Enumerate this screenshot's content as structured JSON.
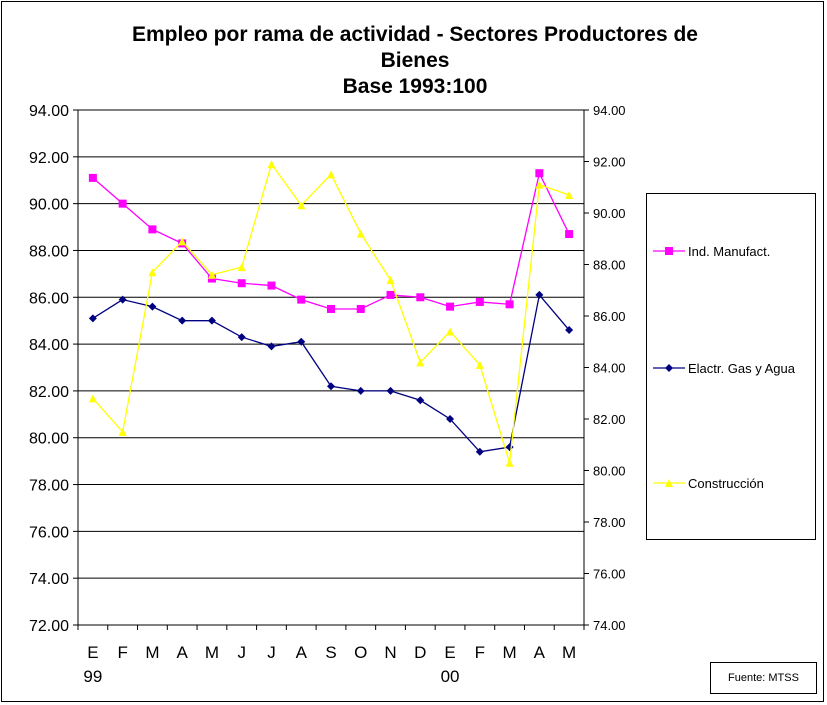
{
  "chart_data": {
    "type": "line",
    "title_lines": [
      "Empleo por rama de actividad - Sectores Productores de",
      "Bienes",
      "Base 1993:100"
    ],
    "categories": [
      "E",
      "F",
      "M",
      "A",
      "M",
      "J",
      "J",
      "A",
      "S",
      "O",
      "N",
      "D",
      "E",
      "F",
      "M",
      "A",
      "M"
    ],
    "year_labels": [
      {
        "index": 0,
        "label": "99"
      },
      {
        "index": 12,
        "label": "00"
      }
    ],
    "y_left": {
      "min": 72,
      "max": 94,
      "step": 2,
      "ticks": [
        "72.00",
        "74.00",
        "76.00",
        "78.00",
        "80.00",
        "82.00",
        "84.00",
        "86.00",
        "88.00",
        "90.00",
        "92.00",
        "94.00"
      ]
    },
    "y_right": {
      "min": 74,
      "max": 94,
      "step": 2,
      "ticks": [
        "74.00",
        "76.00",
        "78.00",
        "80.00",
        "82.00",
        "84.00",
        "86.00",
        "88.00",
        "90.00",
        "92.00",
        "94.00"
      ]
    },
    "grid": true,
    "legend_position": "right",
    "series": [
      {
        "name": "Ind. Manufact.",
        "axis": "left",
        "color": "#ff00ff",
        "marker": "square",
        "values": [
          91.1,
          90.0,
          88.9,
          88.3,
          86.8,
          86.6,
          86.5,
          85.9,
          85.5,
          85.5,
          86.1,
          86.0,
          85.6,
          85.8,
          85.7,
          91.3,
          88.7
        ]
      },
      {
        "name": "Elactr. Gas y Agua",
        "axis": "left",
        "color": "#000080",
        "marker": "diamond",
        "values": [
          85.1,
          85.9,
          85.6,
          85.0,
          85.0,
          84.3,
          83.9,
          84.1,
          82.2,
          82.0,
          82.0,
          81.6,
          80.8,
          79.4,
          79.6,
          86.1,
          84.6
        ]
      },
      {
        "name": "Construcción",
        "axis": "right",
        "color": "#ffff00",
        "marker": "triangle",
        "values": [
          82.8,
          81.5,
          87.7,
          88.9,
          87.6,
          87.9,
          91.9,
          90.3,
          91.5,
          89.2,
          87.4,
          84.2,
          85.4,
          84.1,
          80.3,
          91.1,
          90.7
        ]
      }
    ],
    "source": "Fuente: MTSS"
  }
}
